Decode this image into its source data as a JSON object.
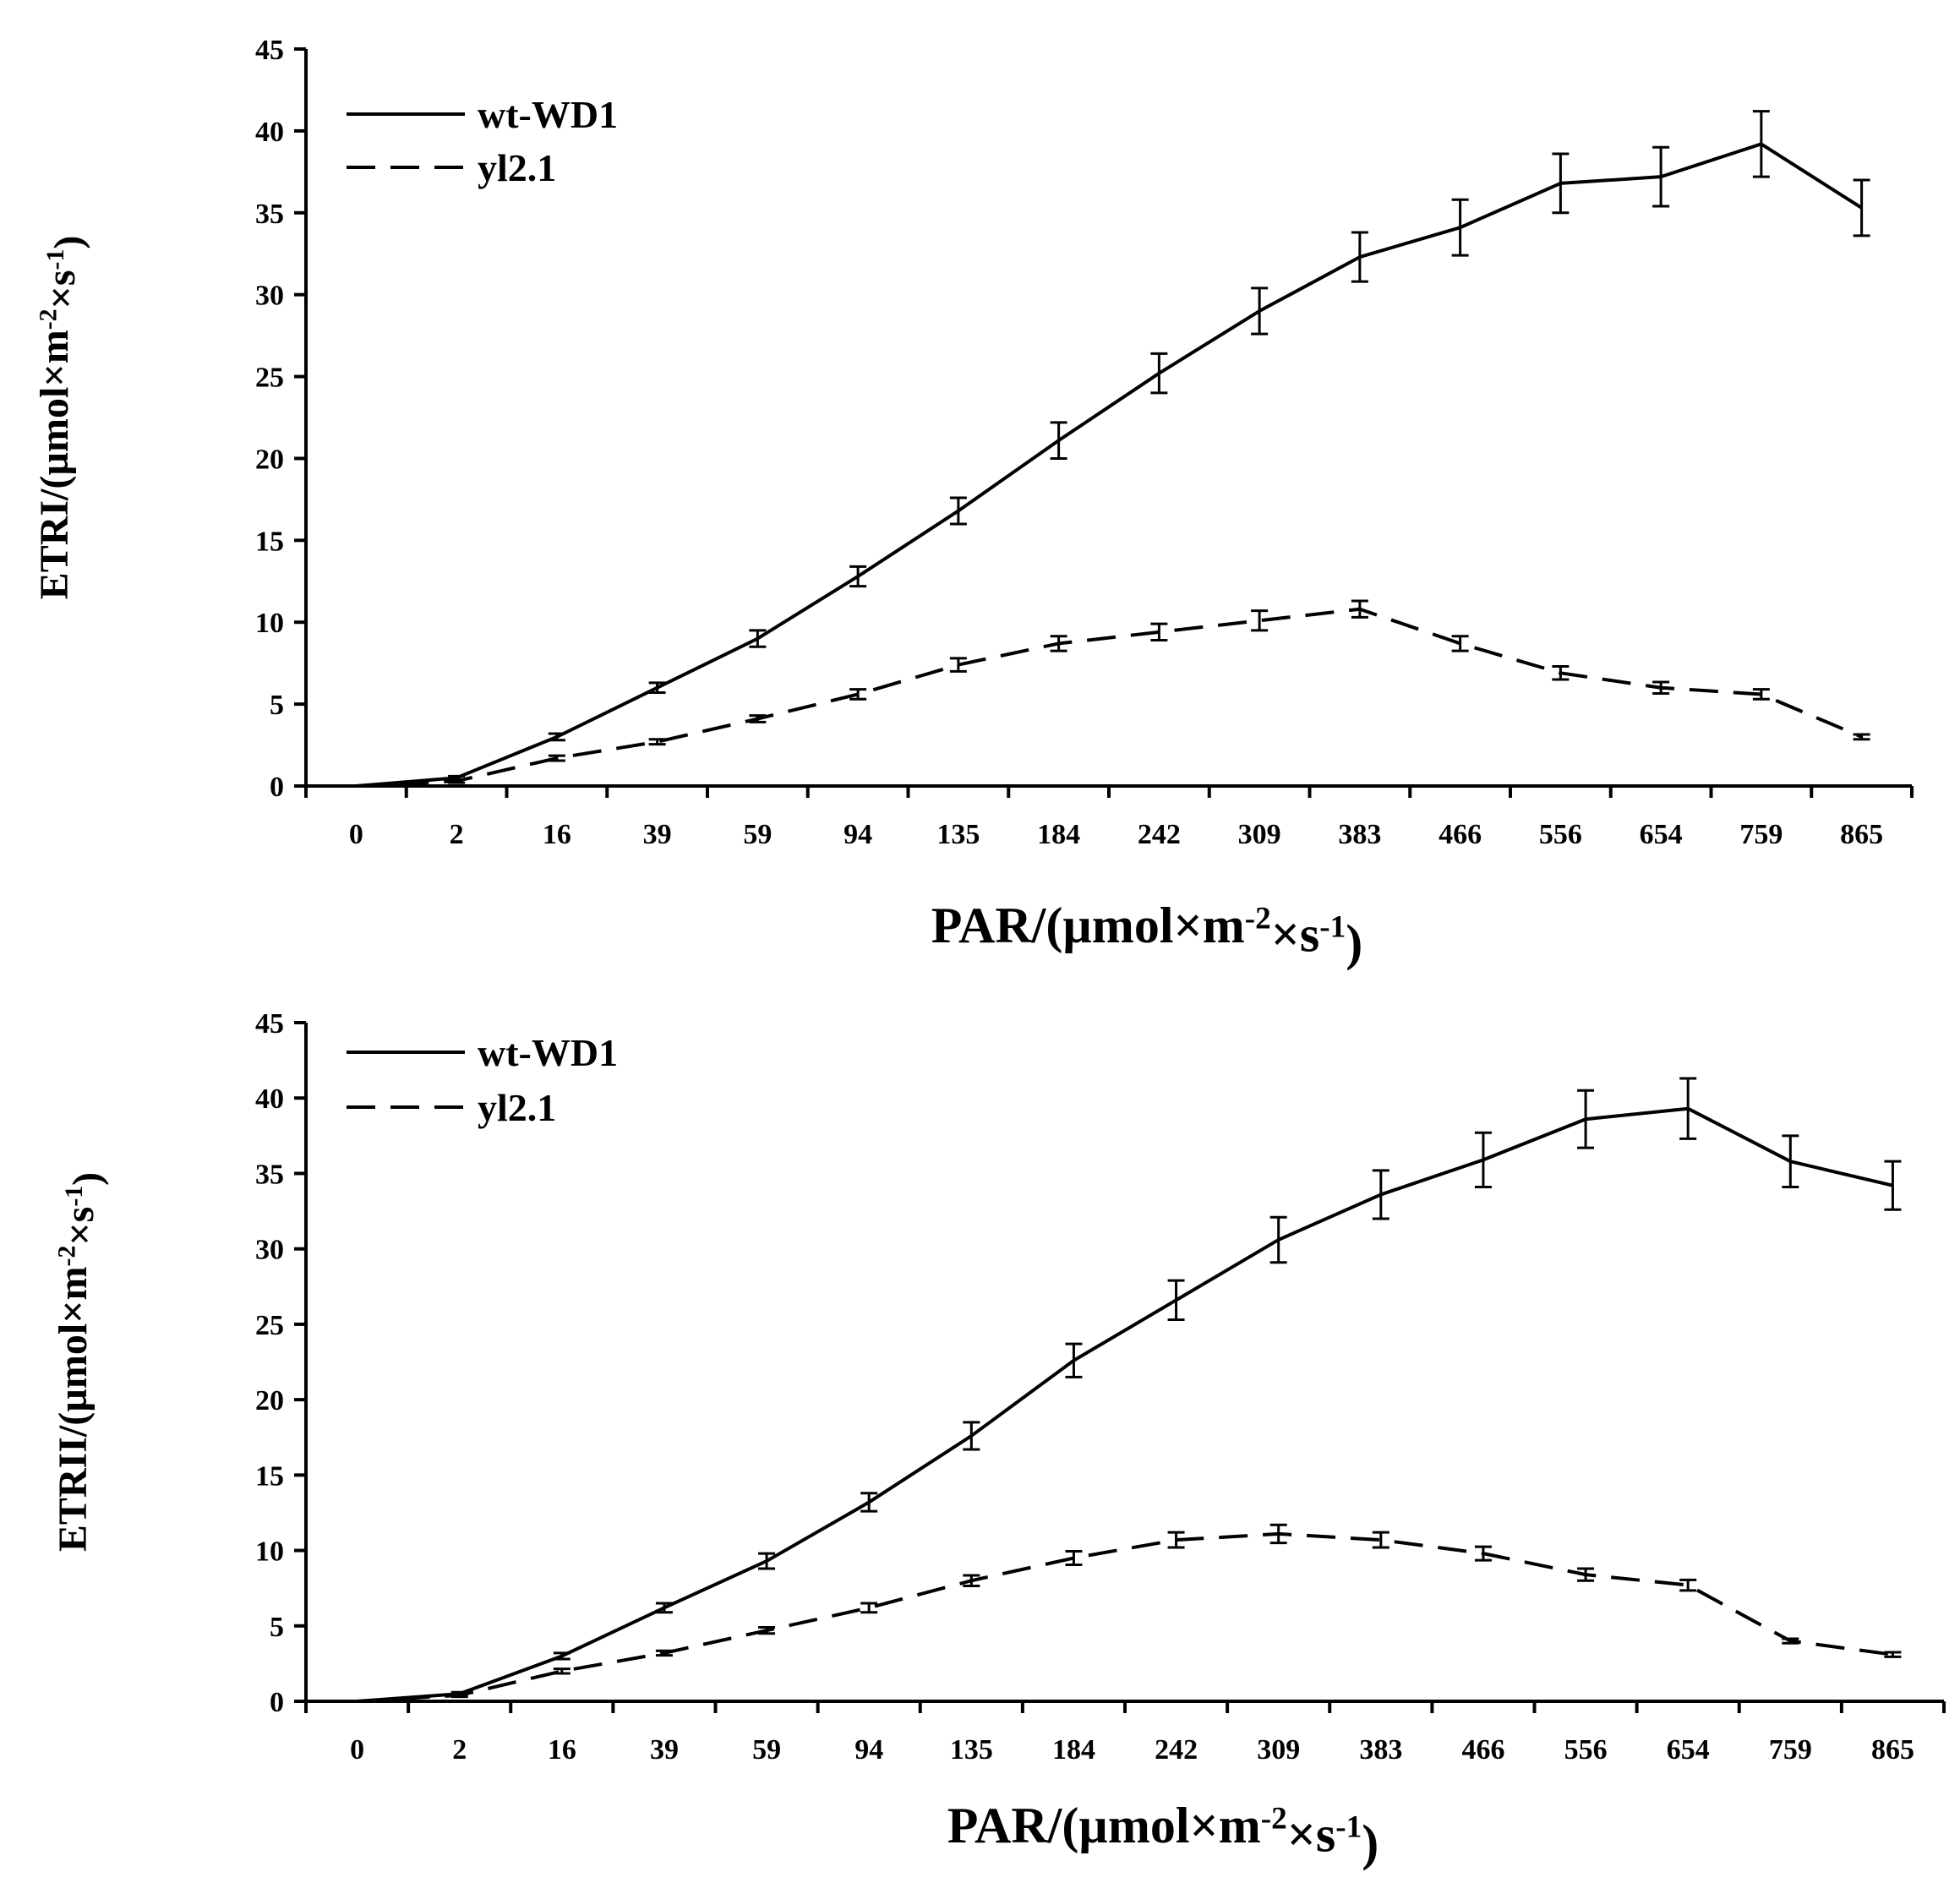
{
  "chart_data": [
    {
      "type": "line",
      "name": "ETRI",
      "ylabel": {
        "base": "ETRI/(µmol×m",
        "exp1": "-2",
        "mid": "×s",
        "exp2": "-1",
        "end": ")"
      },
      "xlabel": {
        "base": "PAR/(µmol×m",
        "exp1": "-2",
        "mid": "×s",
        "exp2": "-1",
        "end": ")"
      },
      "categories": [
        "0",
        "2",
        "16",
        "39",
        "59",
        "94",
        "135",
        "184",
        "242",
        "309",
        "383",
        "466",
        "556",
        "654",
        "759",
        "865"
      ],
      "ylim": [
        0,
        45
      ],
      "yticks": [
        "0",
        "5",
        "10",
        "15",
        "20",
        "25",
        "30",
        "35",
        "40",
        "45"
      ],
      "legend_position": "top-left",
      "series": [
        {
          "name": "wt-WD1",
          "style": "solid",
          "values": [
            0,
            0.5,
            3.0,
            6.0,
            9.0,
            12.8,
            16.8,
            21.1,
            25.2,
            29.0,
            32.3,
            34.1,
            36.8,
            37.2,
            39.2,
            35.3
          ],
          "errors": [
            0,
            0.1,
            0.2,
            0.3,
            0.5,
            0.6,
            0.8,
            1.1,
            1.2,
            1.4,
            1.5,
            1.7,
            1.8,
            1.8,
            2.0,
            1.7
          ]
        },
        {
          "name": "yl2.1",
          "style": "dashed",
          "values": [
            0,
            0.3,
            1.7,
            2.7,
            4.1,
            5.6,
            7.4,
            8.7,
            9.4,
            10.1,
            10.8,
            8.7,
            6.9,
            6.0,
            5.6,
            3.0
          ],
          "errors": [
            0,
            0.1,
            0.15,
            0.15,
            0.2,
            0.3,
            0.4,
            0.45,
            0.5,
            0.6,
            0.5,
            0.45,
            0.4,
            0.35,
            0.3,
            0.15
          ]
        }
      ]
    },
    {
      "type": "line",
      "name": "ETRII",
      "ylabel": {
        "base": "ETRII/(µmol×m",
        "exp1": "-2",
        "mid": "×s",
        "exp2": "-1",
        "end": ")"
      },
      "xlabel": {
        "base": "PAR/(µmol×m",
        "exp1": "-2",
        "mid": "×s",
        "exp2": "-1",
        "end": ")"
      },
      "categories": [
        "0",
        "2",
        "16",
        "39",
        "59",
        "94",
        "135",
        "184",
        "242",
        "309",
        "383",
        "466",
        "556",
        "654",
        "759",
        "865"
      ],
      "ylim": [
        0,
        45
      ],
      "yticks": [
        "0",
        "5",
        "10",
        "15",
        "20",
        "25",
        "30",
        "35",
        "40",
        "45"
      ],
      "legend_position": "top-left",
      "series": [
        {
          "name": "wt-WD1",
          "style": "solid",
          "values": [
            0,
            0.5,
            3.0,
            6.2,
            9.3,
            13.2,
            17.6,
            22.6,
            26.6,
            30.6,
            33.6,
            35.9,
            38.6,
            39.3,
            35.8,
            34.2
          ],
          "errors": [
            0,
            0.1,
            0.2,
            0.3,
            0.5,
            0.6,
            0.9,
            1.1,
            1.3,
            1.5,
            1.6,
            1.8,
            1.9,
            2.0,
            1.7,
            1.6
          ]
        },
        {
          "name": "yl2.1",
          "style": "dashed",
          "values": [
            0,
            0.4,
            2.0,
            3.2,
            4.7,
            6.2,
            8.0,
            9.5,
            10.7,
            11.1,
            10.7,
            9.8,
            8.4,
            7.7,
            4.0,
            3.1
          ],
          "errors": [
            0,
            0.1,
            0.15,
            0.15,
            0.2,
            0.3,
            0.35,
            0.45,
            0.5,
            0.6,
            0.5,
            0.45,
            0.4,
            0.35,
            0.15,
            0.15
          ]
        }
      ]
    }
  ]
}
